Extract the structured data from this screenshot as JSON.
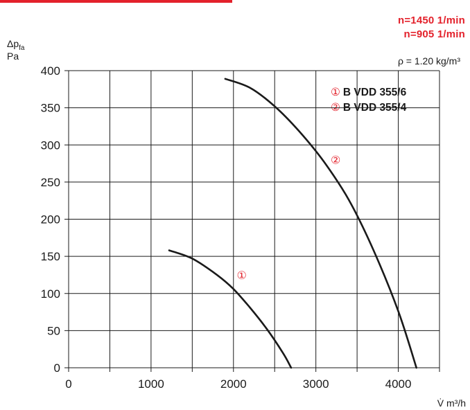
{
  "header": {
    "speed_1": "n=1450 1/min",
    "speed_2": "n=905 1/min",
    "y_unit_line1": "Δp_fa",
    "y_unit_line2": "Pa",
    "density": "ρ = 1.20 kg/m³",
    "x_unit": "V̇ m³/h"
  },
  "legend": [
    {
      "marker": "①",
      "label": "B VDD 355/6"
    },
    {
      "marker": "②",
      "label": "B VDD 355/4"
    }
  ],
  "colors": {
    "accent": "#e3212b",
    "curve": "#1a1a1a",
    "grid": "#1a1a1a"
  },
  "chart_data": {
    "type": "line",
    "xlim": [
      0,
      4500
    ],
    "ylim": [
      0,
      400
    ],
    "x_ticks": [
      0,
      1000,
      2000,
      3000,
      4000
    ],
    "y_ticks": [
      0,
      50,
      100,
      150,
      200,
      250,
      300,
      350,
      400
    ],
    "grid": true,
    "series": [
      {
        "name": "①",
        "x": [
          1220,
          1500,
          1800,
          2000,
          2200,
          2400,
          2600,
          2700
        ],
        "y": [
          158,
          147,
          125,
          106,
          81,
          53,
          20,
          0
        ]
      },
      {
        "name": "②",
        "x": [
          1900,
          2200,
          2500,
          2800,
          3100,
          3400,
          3700,
          4000,
          4220
        ],
        "y": [
          389,
          377,
          352,
          318,
          277,
          226,
          158,
          76,
          0
        ]
      }
    ],
    "curve_labels": [
      {
        "text": "①",
        "x": 2100,
        "y": 125
      },
      {
        "text": "②",
        "x": 3240,
        "y": 280
      }
    ]
  }
}
